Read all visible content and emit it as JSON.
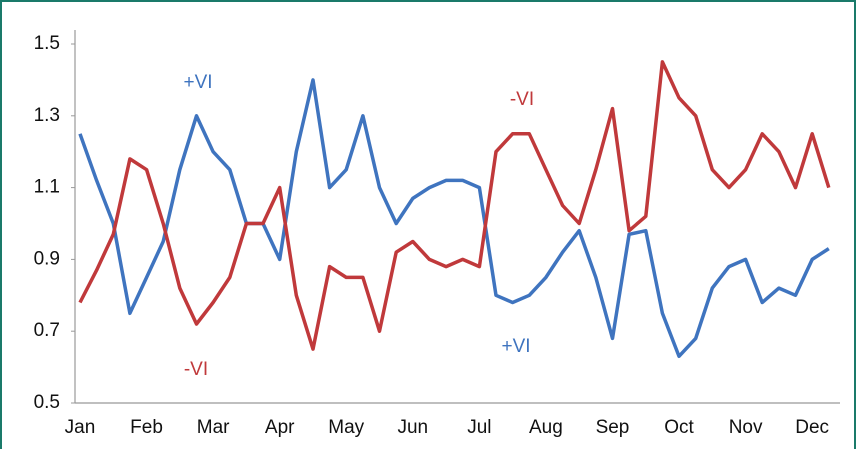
{
  "chart_data": {
    "type": "line",
    "categories": [
      "Jan",
      null,
      null,
      null,
      "Feb",
      null,
      null,
      null,
      "Mar",
      null,
      null,
      null,
      "Apr",
      null,
      null,
      null,
      "May",
      null,
      null,
      null,
      "Jun",
      null,
      null,
      null,
      "Jul",
      null,
      null,
      null,
      "Aug",
      null,
      null,
      null,
      "Sep",
      null,
      null,
      null,
      "Oct",
      null,
      null,
      null,
      "Nov",
      null,
      null,
      null,
      "Dec",
      null
    ],
    "series": [
      {
        "name": "+VI",
        "color": "#3f74bf",
        "values": [
          1.25,
          1.12,
          1.0,
          0.75,
          0.85,
          0.95,
          1.15,
          1.3,
          1.2,
          1.15,
          1.0,
          1.0,
          0.9,
          1.2,
          1.4,
          1.1,
          1.15,
          1.3,
          1.1,
          1.0,
          1.07,
          1.1,
          1.12,
          1.12,
          1.1,
          0.8,
          0.78,
          0.8,
          0.85,
          0.92,
          0.98,
          0.85,
          0.68,
          0.97,
          0.98,
          0.75,
          0.63,
          0.68,
          0.82,
          0.88,
          0.9,
          0.78,
          0.82,
          0.8,
          0.9,
          0.93
        ]
      },
      {
        "name": "-VI",
        "color": "#c0393b",
        "values": [
          0.78,
          0.87,
          0.97,
          1.18,
          1.15,
          1.0,
          0.82,
          0.72,
          0.78,
          0.85,
          1.0,
          1.0,
          1.1,
          0.8,
          0.65,
          0.88,
          0.85,
          0.85,
          0.7,
          0.92,
          0.95,
          0.9,
          0.88,
          0.9,
          0.88,
          1.2,
          1.25,
          1.25,
          1.15,
          1.05,
          1.0,
          1.15,
          1.32,
          0.98,
          1.02,
          1.45,
          1.35,
          1.3,
          1.15,
          1.1,
          1.15,
          1.25,
          1.2,
          1.1,
          1.25,
          1.1
        ]
      }
    ],
    "annotations": [
      {
        "text": "+VI",
        "series": 0
      },
      {
        "text": "-VI",
        "series": 1
      },
      {
        "text": "-VI",
        "series": 1
      },
      {
        "text": "+VI",
        "series": 0
      }
    ],
    "ylim": [
      0.5,
      1.5
    ],
    "yticks": [
      0.5,
      0.7,
      0.9,
      1.1,
      1.3,
      1.5
    ],
    "grid": false
  }
}
